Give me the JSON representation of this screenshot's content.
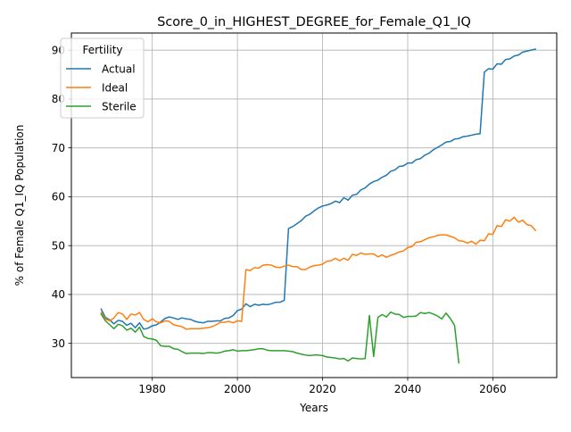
{
  "chart_data": {
    "type": "line",
    "title": "Score_0_in_HIGHEST_DEGREE_for_Female_Q1_IQ",
    "xlabel": "Years",
    "ylabel": "% of Female Q1_IQ Population",
    "xlim": [
      1961,
      2075
    ],
    "ylim": [
      23,
      93.5
    ],
    "xticks": [
      1980,
      2000,
      2020,
      2040,
      2060
    ],
    "yticks": [
      30,
      40,
      50,
      60,
      70,
      80,
      90
    ],
    "grid": true,
    "legend": {
      "title": "Fertility",
      "placement": "top-left"
    },
    "series": [
      {
        "name": "Actual",
        "color": "#1f77b4",
        "x": [
          1968,
          1969,
          1970,
          1971,
          1972,
          1973,
          1974,
          1975,
          1976,
          1977,
          1978,
          1979,
          1980,
          1981,
          1982,
          1983,
          1984,
          1985,
          1986,
          1987,
          1988,
          1989,
          1990,
          1991,
          1992,
          1993,
          1994,
          1995,
          1996,
          1997,
          1998,
          1999,
          2000,
          2001,
          2002,
          2003,
          2004,
          2005,
          2006,
          2007,
          2008,
          2009,
          2010,
          2011,
          2012,
          2013,
          2014,
          2015,
          2016,
          2017,
          2018,
          2019,
          2020,
          2021,
          2022,
          2023,
          2024,
          2025,
          2026,
          2027,
          2028,
          2029,
          2030,
          2031,
          2032,
          2033,
          2034,
          2035,
          2036,
          2037,
          2038,
          2039,
          2040,
          2041,
          2042,
          2043,
          2044,
          2045,
          2046,
          2047,
          2048,
          2049,
          2050,
          2051,
          2052,
          2053,
          2054,
          2055,
          2056,
          2057,
          2058,
          2059,
          2060,
          2061,
          2062,
          2063,
          2064,
          2065,
          2066,
          2067,
          2068,
          2069,
          2070
        ],
        "values": [
          37.0,
          35.3,
          34.8,
          34.0,
          34.7,
          34.5,
          33.7,
          34.1,
          33.2,
          34.2,
          32.9,
          33.1,
          33.6,
          33.8,
          34.4,
          35.1,
          35.4,
          35.2,
          34.9,
          35.2,
          35.0,
          34.9,
          34.5,
          34.3,
          34.2,
          34.5,
          34.5,
          34.6,
          34.6,
          35.1,
          35.2,
          35.7,
          36.7,
          37.0,
          38.1,
          37.5,
          38.0,
          37.8,
          38.0,
          37.9,
          38.1,
          38.4,
          38.4,
          38.8,
          53.5,
          53.9,
          54.5,
          55.1,
          56.0,
          56.4,
          57.1,
          57.7,
          58.1,
          58.3,
          58.6,
          59.1,
          58.8,
          59.8,
          59.3,
          60.3,
          60.5,
          61.4,
          61.8,
          62.6,
          63.1,
          63.4,
          64.0,
          64.4,
          65.2,
          65.5,
          66.2,
          66.3,
          66.9,
          66.9,
          67.6,
          67.8,
          68.5,
          68.9,
          69.6,
          70.1,
          70.6,
          71.2,
          71.3,
          71.8,
          71.9,
          72.3,
          72.4,
          72.6,
          72.8,
          72.9,
          85.5,
          86.2,
          86.1,
          87.2,
          87.1,
          88.1,
          88.2,
          88.8,
          89.0,
          89.6,
          89.8,
          90.0,
          90.2
        ]
      },
      {
        "name": "Ideal",
        "color": "#ff7f0e",
        "x": [
          1968,
          1969,
          1970,
          1971,
          1972,
          1973,
          1974,
          1975,
          1976,
          1977,
          1978,
          1979,
          1980,
          1981,
          1982,
          1983,
          1984,
          1985,
          1986,
          1987,
          1988,
          1989,
          1990,
          1991,
          1992,
          1993,
          1994,
          1995,
          1996,
          1997,
          1998,
          1999,
          2000,
          2001,
          2002,
          2003,
          2004,
          2005,
          2006,
          2007,
          2008,
          2009,
          2010,
          2011,
          2012,
          2013,
          2014,
          2015,
          2016,
          2017,
          2018,
          2019,
          2020,
          2021,
          2022,
          2023,
          2024,
          2025,
          2026,
          2027,
          2028,
          2029,
          2030,
          2031,
          2032,
          2033,
          2034,
          2035,
          2036,
          2037,
          2038,
          2039,
          2040,
          2041,
          2042,
          2043,
          2044,
          2045,
          2046,
          2047,
          2048,
          2049,
          2050,
          2051,
          2052,
          2053,
          2054,
          2055,
          2056,
          2057,
          2058,
          2059,
          2060,
          2061,
          2062,
          2063,
          2064,
          2065,
          2066,
          2067,
          2068,
          2069,
          2070
        ],
        "values": [
          36.3,
          35.0,
          34.6,
          35.2,
          36.3,
          36.0,
          34.9,
          36.0,
          35.8,
          36.3,
          34.9,
          34.4,
          35.0,
          34.4,
          34.2,
          34.6,
          34.5,
          33.8,
          33.6,
          33.4,
          32.9,
          33.0,
          33.0,
          33.0,
          33.1,
          33.2,
          33.4,
          33.8,
          34.3,
          34.3,
          34.5,
          34.2,
          34.6,
          34.5,
          45.1,
          44.9,
          45.5,
          45.4,
          46.0,
          46.1,
          46.0,
          45.6,
          45.5,
          45.8,
          46.0,
          45.7,
          45.7,
          45.1,
          45.1,
          45.6,
          45.9,
          46.0,
          46.2,
          46.8,
          46.9,
          47.4,
          46.9,
          47.4,
          47.0,
          48.2,
          48.0,
          48.5,
          48.2,
          48.3,
          48.3,
          47.7,
          48.1,
          47.6,
          48.0,
          48.3,
          48.7,
          48.9,
          49.6,
          49.8,
          50.7,
          50.8,
          51.2,
          51.6,
          51.8,
          52.1,
          52.2,
          52.2,
          51.9,
          51.6,
          51.0,
          50.9,
          50.5,
          50.9,
          50.3,
          51.1,
          51.0,
          52.4,
          52.3,
          54.1,
          53.9,
          55.3,
          55.0,
          55.8,
          54.8,
          55.2,
          54.3,
          54.1,
          53.1
        ]
      },
      {
        "name": "Sterile",
        "color": "#2ca02c",
        "x": [
          1968,
          1969,
          1970,
          1971,
          1972,
          1973,
          1974,
          1975,
          1976,
          1977,
          1978,
          1979,
          1980,
          1981,
          1982,
          1983,
          1984,
          1985,
          1986,
          1987,
          1988,
          1989,
          1990,
          1991,
          1992,
          1993,
          1994,
          1995,
          1996,
          1997,
          1998,
          1999,
          2000,
          2001,
          2002,
          2003,
          2004,
          2005,
          2006,
          2007,
          2008,
          2009,
          2010,
          2011,
          2012,
          2013,
          2014,
          2015,
          2016,
          2017,
          2018,
          2019,
          2020,
          2021,
          2022,
          2023,
          2024,
          2025,
          2026,
          2027,
          2028,
          2029,
          2030,
          2031,
          2032,
          2033,
          2034,
          2035,
          2036,
          2037,
          2038,
          2039,
          2040,
          2041,
          2042,
          2043,
          2044,
          2045,
          2046,
          2047,
          2048,
          2049,
          2050,
          2051,
          2052
        ],
        "values": [
          36.0,
          34.6,
          33.8,
          33.0,
          33.9,
          33.6,
          32.7,
          33.1,
          32.3,
          33.3,
          31.4,
          31.0,
          30.9,
          30.6,
          29.5,
          29.4,
          29.4,
          28.9,
          28.8,
          28.3,
          27.9,
          28.0,
          28.0,
          28.0,
          27.9,
          28.1,
          28.1,
          28.0,
          28.1,
          28.4,
          28.5,
          28.7,
          28.4,
          28.5,
          28.5,
          28.6,
          28.7,
          28.9,
          28.9,
          28.6,
          28.5,
          28.5,
          28.5,
          28.5,
          28.4,
          28.3,
          28.0,
          27.8,
          27.6,
          27.5,
          27.6,
          27.6,
          27.5,
          27.2,
          27.1,
          27.0,
          26.8,
          26.9,
          26.4,
          27.0,
          26.9,
          26.8,
          26.9,
          35.7,
          27.3,
          35.3,
          35.9,
          35.4,
          36.4,
          36.0,
          35.9,
          35.3,
          35.5,
          35.5,
          35.6,
          36.3,
          36.1,
          36.3,
          36.0,
          35.6,
          35.0,
          36.2,
          35.1,
          33.7,
          26.0
        ]
      }
    ]
  }
}
